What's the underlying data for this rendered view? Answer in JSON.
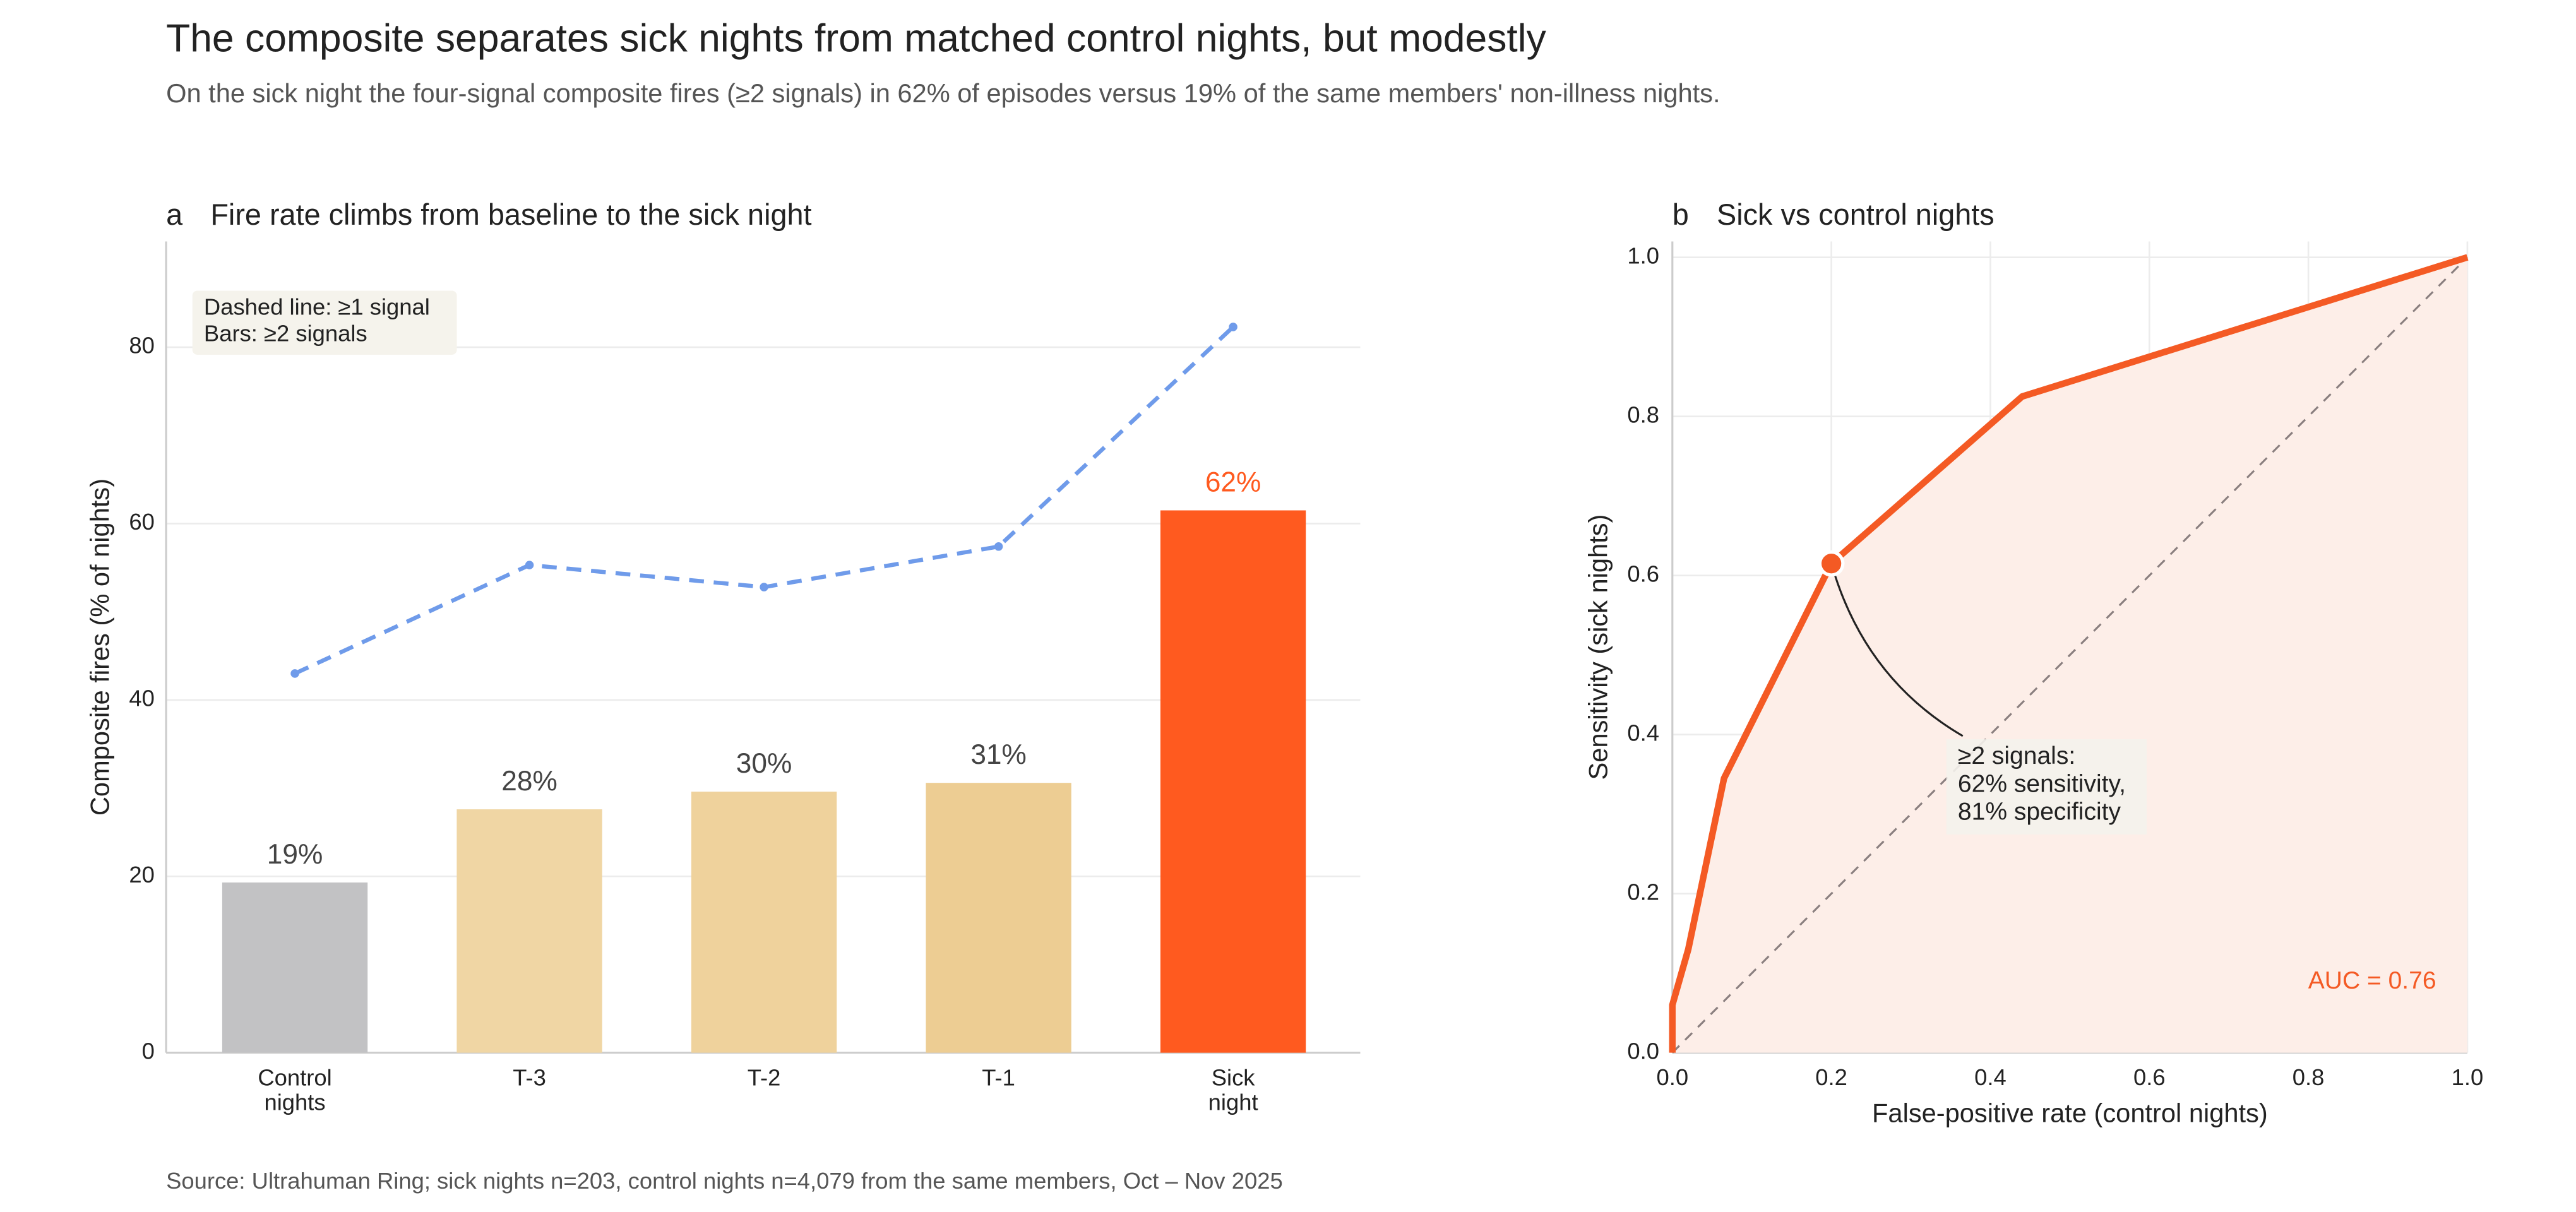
{
  "title": "The composite separates sick nights from matched control nights, but modestly",
  "subtitle": "On the sick night the four-signal composite fires (≥2 signals) in 62% of episodes versus 19% of the same members' non-illness nights.",
  "source": "Source: Ultrahuman Ring; sick nights n=203, control nights n=4,079 from the same members, Oct – Nov 2025",
  "chart_data": [
    {
      "type": "bar",
      "panel_label": "a",
      "title": "Fire rate climbs from baseline to the sick night",
      "y_label": "Composite fires (% of nights)",
      "categories": [
        "Control nights",
        "T-3",
        "T-2",
        "T-1",
        "Sick night"
      ],
      "series": [
        {
          "kind": "bar",
          "values": [
            19.3,
            27.6,
            29.6,
            30.6,
            61.5
          ],
          "value_labels": [
            "19%",
            "28%",
            "30%",
            "31%",
            "62%"
          ],
          "colors": [
            "#c2c2c4",
            "#f0d6a4",
            "#efd29c",
            "#edcd93",
            "#ff5a1f"
          ],
          "highlight_index": 4
        },
        {
          "kind": "line",
          "values": [
            43.0,
            55.3,
            52.8,
            57.4,
            82.3
          ],
          "color": "#6f9bea",
          "dashed": true
        }
      ],
      "annotation": [
        "Dashed line: ≥1 signal",
        "Bars: ≥2 signals"
      ],
      "ylim": [
        0,
        92
      ],
      "yticks": [
        0,
        20,
        40,
        60,
        80
      ],
      "grid": true
    },
    {
      "type": "roc",
      "panel_label": "b",
      "title": "Sick vs control nights",
      "x_label": "False-positive rate (control nights)",
      "y_label": "Sensitivity (sick nights)",
      "series": [
        {
          "x": [
            0,
            0,
            0.02,
            0.065,
            0.2,
            0.44,
            1.0
          ],
          "y": [
            0,
            0.06,
            0.13,
            0.345,
            0.615,
            0.825,
            1.0
          ],
          "color": "#f45a24",
          "fill": "#fdeee8"
        }
      ],
      "highlight": {
        "x": 0.2,
        "y": 0.615
      },
      "annotation": [
        "≥2 signals:",
        "62% sensitivity,",
        "81% specificity"
      ],
      "auc_label": "AUC = 0.76",
      "xlim": [
        0,
        1
      ],
      "ylim": [
        0,
        1.02
      ],
      "xticks": [
        {
          "value": 0,
          "label": "0.0"
        },
        0.2,
        0.4,
        0.6,
        0.8,
        {
          "value": 1,
          "label": "1.0"
        }
      ],
      "yticks": [
        {
          "value": 0,
          "label": "0.0"
        },
        0.2,
        0.4,
        0.6,
        0.8,
        {
          "value": 1,
          "label": "1.0"
        }
      ],
      "grid": true
    }
  ]
}
